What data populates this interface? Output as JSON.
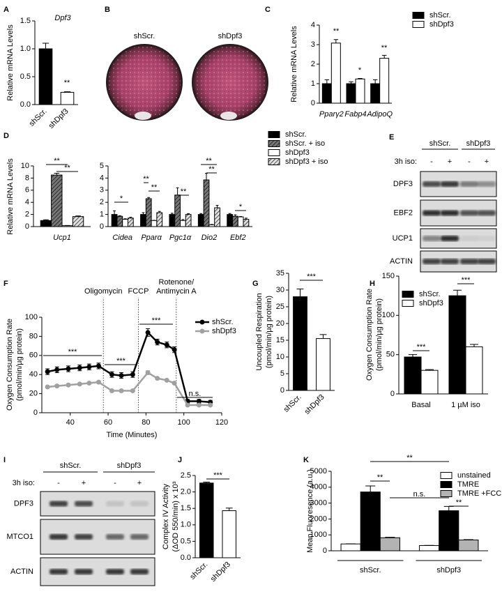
{
  "chart_data": [
    {
      "panel": "A",
      "type": "bar",
      "title": "Dpf3",
      "ylabel": [
        "Relative mRNA Levels"
      ],
      "categories": [
        "shScr.",
        "shDpf3"
      ],
      "values": [
        1.0,
        0.22
      ],
      "errors": [
        0.1,
        0.01
      ],
      "colors": [
        "#000000",
        "#ffffff"
      ],
      "ylim": [
        0,
        1.5
      ],
      "yticks": [
        {
          "value": 0,
          "label": "0.0"
        },
        0.5,
        {
          "value": 1,
          "label": "1.0"
        },
        1.5
      ],
      "annotations": [
        "**"
      ]
    },
    {
      "panel": "C",
      "type": "bar",
      "ylabel": [
        "Relative mRNA Levels"
      ],
      "categories": [
        "Pparγ2",
        "Fabp4",
        "AdipoQ"
      ],
      "series": [
        {
          "name": "shScr.",
          "color": "#000000",
          "values": [
            1,
            1,
            1
          ],
          "errors": [
            0.2,
            0.1,
            0.2
          ]
        },
        {
          "name": "shDpf3",
          "color": "#ffffff",
          "values": [
            3.08,
            1.24,
            2.3
          ],
          "errors": [
            0.18,
            0.03,
            0.15
          ]
        }
      ],
      "ylim": [
        0,
        4
      ],
      "yticks": [
        0,
        1,
        2,
        3,
        4
      ],
      "annotations": [
        "**",
        "*",
        "**"
      ]
    },
    {
      "panel": "D",
      "type": "bar",
      "ylabel": [
        "Relative mRNA Levels"
      ],
      "series": [
        {
          "name": "shScr.",
          "color": "#000000"
        },
        {
          "name": "shScr. + iso",
          "color": "#777777",
          "hatch": true
        },
        {
          "name": "shDpf3",
          "color": "#ffffff"
        },
        {
          "name": "shDpf3 + iso",
          "color": "#e0e0e0",
          "hatch": true
        }
      ],
      "subplots": [
        {
          "categories": [
            "Ucp1"
          ],
          "values": [
            [
              1.0
            ],
            [
              8.5
            ],
            [
              0.15
            ],
            [
              1.65
            ]
          ],
          "errors": [
            [
              0.12
            ],
            [
              0.3
            ],
            [
              0.03
            ],
            [
              0.1
            ]
          ],
          "ylim": [
            0,
            10
          ],
          "yticks": [
            0,
            2,
            4,
            6,
            8,
            10
          ],
          "annotations": [
            "**",
            "**"
          ]
        },
        {
          "categories": [
            "Cidea",
            "Pparα",
            "Pgc1α",
            "Dio2",
            "Ebf2"
          ],
          "values": [
            [
              1.0,
              1.0,
              1.0,
              1.0,
              1.0
            ],
            [
              0.85,
              2.3,
              2.6,
              3.85,
              0.85
            ],
            [
              0.6,
              0.5,
              0.5,
              0.15,
              0.8
            ],
            [
              0.7,
              1.15,
              1.0,
              1.55,
              0.6
            ]
          ],
          "errors": [
            [
              0.3,
              0.15,
              0.1,
              0.08,
              0.08
            ],
            [
              0.05,
              0.1,
              0.6,
              0.55,
              0.12
            ],
            [
              0.05,
              0.02,
              0.08,
              0.03,
              0.03
            ],
            [
              0.07,
              0.1,
              0.07,
              0.2,
              0.1
            ]
          ],
          "ylim": [
            0,
            5
          ],
          "yticks": [
            0,
            1,
            2,
            3,
            4,
            5
          ],
          "annotations": [
            "*",
            "**",
            "**",
            "**",
            "**",
            "**",
            "*"
          ]
        }
      ]
    },
    {
      "panel": "F",
      "type": "line",
      "xlabel": "Time (Minutes)",
      "ylabel": [
        "Oxygen Consumption Rate",
        "(pmol/min/µg protein)"
      ],
      "x": [
        28,
        33,
        39,
        45,
        50,
        55,
        62,
        67,
        73,
        81,
        86,
        91,
        95,
        102,
        108,
        114
      ],
      "series": [
        {
          "name": "shScr.",
          "color": "#000000",
          "values": [
            43,
            45,
            46,
            47,
            48,
            49,
            40,
            39,
            40,
            84,
            74,
            71,
            66,
            12,
            12,
            11
          ],
          "errors": [
            3,
            3,
            3,
            3,
            3,
            3,
            3,
            3,
            3,
            4,
            3,
            3,
            3,
            2,
            2,
            2
          ]
        },
        {
          "name": "shDpf3",
          "color": "#a0a0a0",
          "values": [
            27,
            28,
            29,
            30,
            31,
            32,
            23,
            23,
            23,
            42,
            36,
            34,
            31,
            8,
            8,
            8
          ],
          "errors": [
            1,
            1,
            1,
            1,
            1,
            1,
            1,
            1,
            1,
            2,
            1,
            1,
            1,
            1,
            1,
            1
          ]
        }
      ],
      "xlim": [
        25,
        120
      ],
      "xticks": [
        40,
        60,
        80,
        100,
        120
      ],
      "ylim": [
        0,
        100
      ],
      "yticks": [
        0,
        20,
        40,
        60,
        80,
        100
      ],
      "treatments": [
        {
          "label": [
            "Oligomycin"
          ],
          "x": 57.5
        },
        {
          "label": [
            "FCCP"
          ],
          "x": 76
        },
        {
          "label": [
            "Rotenone/",
            "Antimycin A"
          ],
          "x": 96
        }
      ],
      "annotations": [
        "***",
        "***",
        "***",
        "n.s."
      ]
    },
    {
      "panel": "G",
      "type": "bar",
      "ylabel": [
        "Uncoupled Respiration",
        "(pmol/min/µg protein)"
      ],
      "categories": [
        "shScr.",
        "shDpf3"
      ],
      "values": [
        28,
        15.5
      ],
      "errors": [
        2.3,
        1.2
      ],
      "colors": [
        "#000000",
        "#ffffff"
      ],
      "ylim": [
        0,
        35
      ],
      "yticks": [
        0,
        5,
        10,
        15,
        20,
        25,
        30,
        35
      ],
      "annotations": [
        "***"
      ]
    },
    {
      "panel": "H",
      "type": "bar",
      "ylabel": [
        "Oxygen Consumption Rate",
        "(pmol/min/µg protein)"
      ],
      "categories": [
        "Basal",
        "1 µM iso"
      ],
      "series": [
        {
          "name": "shScr.",
          "color": "#000000",
          "values": [
            47,
            125
          ],
          "errors": [
            3,
            7
          ]
        },
        {
          "name": "shDpf3",
          "color": "#ffffff",
          "values": [
            30,
            60
          ],
          "errors": [
            1,
            3
          ]
        }
      ],
      "ylim": [
        0,
        150
      ],
      "yticks": [
        0,
        50,
        100,
        150
      ],
      "annotations": [
        "***",
        "***"
      ]
    },
    {
      "panel": "J",
      "type": "bar",
      "ylabel": [
        "Complex IV Activity",
        "(ΔOD 550/min) x 10³"
      ],
      "categories": [
        "shScr.",
        "shDpf3"
      ],
      "values": [
        2.27,
        1.43
      ],
      "errors": [
        0.03,
        0.08
      ],
      "colors": [
        "#000000",
        "#ffffff"
      ],
      "ylim": [
        0,
        2.5
      ],
      "yticks": [
        {
          "value": 0,
          "label": "0.0"
        },
        0.5,
        {
          "value": 1,
          "label": "1.0"
        },
        1.5,
        {
          "value": 2,
          "label": "2.0"
        },
        2.5
      ],
      "annotations": [
        "***"
      ]
    },
    {
      "panel": "K",
      "type": "bar",
      "ylabel": [
        "Mean Fluoresence (a.u.)"
      ],
      "categories": [
        "shScr.",
        "shDpf3"
      ],
      "series": [
        {
          "name": "unstained",
          "color": "#ffffff",
          "values": [
            430,
            330
          ],
          "errors": [
            10,
            10
          ]
        },
        {
          "name": "TMRE",
          "color": "#000000",
          "values": [
            3700,
            2520
          ],
          "errors": [
            380,
            270
          ]
        },
        {
          "name": "TMRE +FCCP",
          "color": "#b3b3b3",
          "values": [
            820,
            680
          ],
          "errors": [
            30,
            20
          ]
        }
      ],
      "ylim": [
        0,
        5000
      ],
      "yticks": [
        0,
        1000,
        2000,
        3000,
        4000,
        5000
      ],
      "annotations": [
        "**",
        "**",
        "n.s.",
        "**"
      ]
    }
  ],
  "photos": {
    "panel": "B",
    "labels": [
      "shScr.",
      "shDpf3"
    ]
  },
  "blots": [
    {
      "panel": "E",
      "groups": [
        "shScr.",
        "shDpf3"
      ],
      "treatment_label": "3h iso:",
      "treatments": [
        "-",
        "+",
        "-",
        "+"
      ],
      "rows": [
        "DPF3",
        "EBF2",
        "UCP1",
        "ACTIN"
      ]
    },
    {
      "panel": "I",
      "groups": [
        "shScr.",
        "shDpf3"
      ],
      "treatment_label": "3h iso:",
      "treatments": [
        "-",
        "+",
        "-",
        "+"
      ],
      "rows": [
        "DPF3",
        "MTCO1",
        "ACTIN"
      ]
    }
  ]
}
